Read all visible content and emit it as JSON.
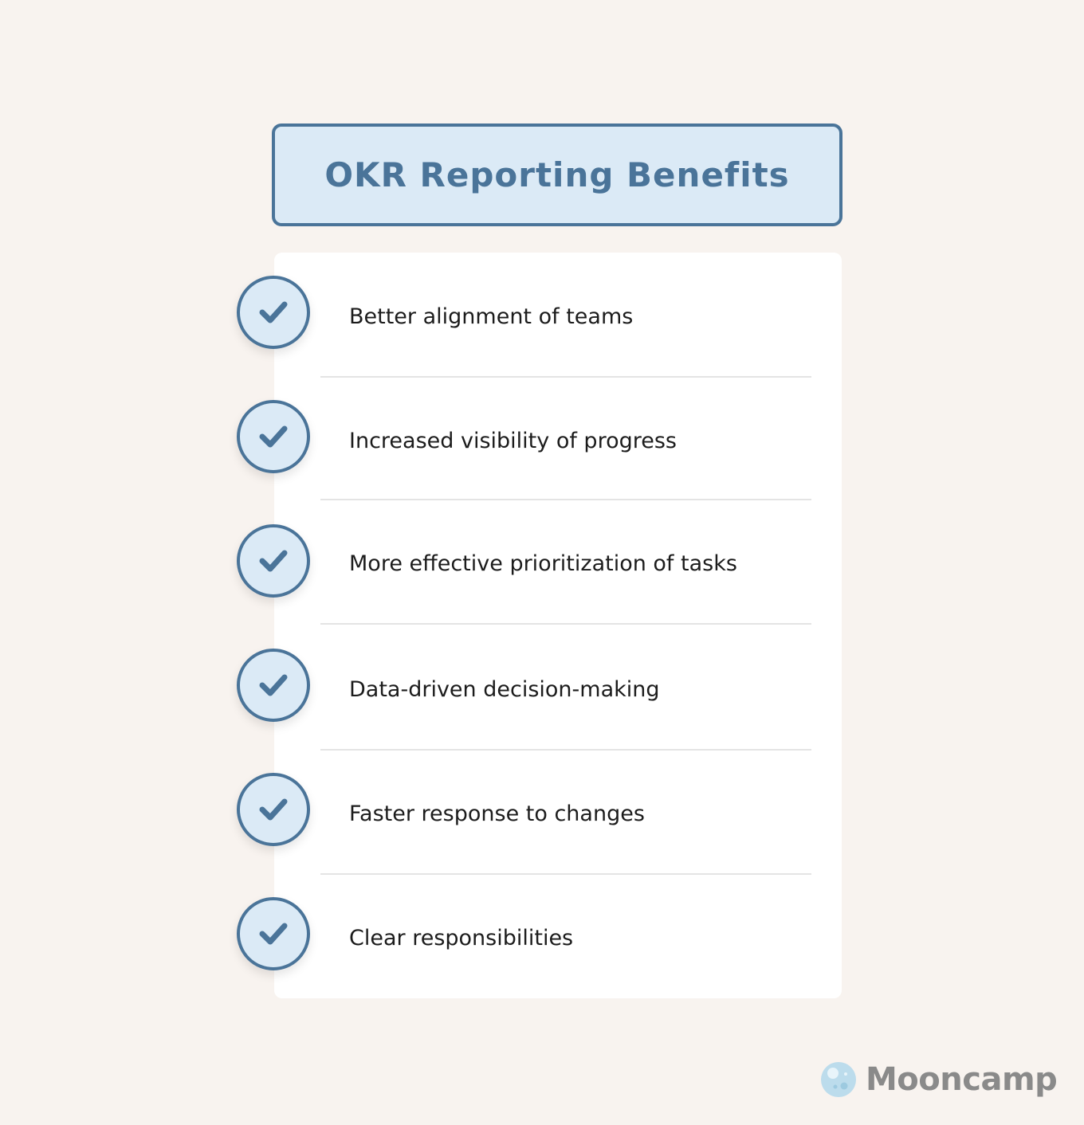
{
  "title": "OKR Reporting Benefits",
  "items": [
    {
      "label": "Better alignment of teams",
      "icon": "check-icon"
    },
    {
      "label": "Increased visibility of progress",
      "icon": "check-icon"
    },
    {
      "label": "More effective prioritization of tasks",
      "icon": "check-icon"
    },
    {
      "label": "Data-driven decision-making",
      "icon": "check-icon"
    },
    {
      "label": "Faster response to changes",
      "icon": "check-icon"
    },
    {
      "label": "Clear responsibilities",
      "icon": "check-icon"
    }
  ],
  "brand": {
    "name": "Mooncamp",
    "icon": "moon-logo-icon"
  },
  "colors": {
    "background": "#f8f3ef",
    "accent": "#4a7499",
    "accent_light": "#dbeaf6",
    "card": "#ffffff",
    "text": "#1c1c1c",
    "brand_text": "#8a8a8a"
  }
}
